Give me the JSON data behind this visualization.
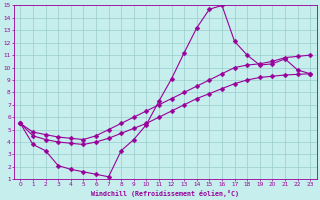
{
  "xlabel": "Windchill (Refroidissement éolien,°C)",
  "xlim": [
    -0.5,
    23.5
  ],
  "ylim": [
    1,
    15
  ],
  "xticks": [
    0,
    1,
    2,
    3,
    4,
    5,
    6,
    7,
    8,
    9,
    10,
    11,
    12,
    13,
    14,
    15,
    16,
    17,
    18,
    19,
    20,
    21,
    22,
    23
  ],
  "yticks": [
    1,
    2,
    3,
    4,
    5,
    6,
    7,
    8,
    9,
    10,
    11,
    12,
    13,
    14,
    15
  ],
  "bg_color": "#c5eeed",
  "line_color": "#990099",
  "grid_color": "#99cccc",
  "curve1_x": [
    0,
    1,
    2,
    3,
    4,
    5,
    6,
    7,
    8,
    9,
    10,
    11,
    12,
    13,
    14,
    15,
    16,
    17,
    18,
    19,
    20,
    21,
    22,
    23
  ],
  "curve1_y": [
    5.5,
    3.8,
    3.3,
    2.1,
    1.8,
    1.6,
    1.4,
    1.2,
    3.3,
    4.2,
    5.4,
    7.3,
    9.1,
    11.2,
    13.2,
    14.7,
    15.0,
    12.1,
    11.0,
    10.2,
    10.3,
    10.7,
    9.8,
    9.5
  ],
  "curve2_x": [
    0,
    1,
    2,
    3,
    4,
    5,
    6,
    7,
    8,
    9,
    10,
    11,
    12,
    13,
    14,
    15,
    16,
    17,
    18,
    19,
    20,
    21,
    22,
    23
  ],
  "curve2_y": [
    5.5,
    4.8,
    4.6,
    4.4,
    4.3,
    4.2,
    4.5,
    5.0,
    5.5,
    6.0,
    6.5,
    7.0,
    7.5,
    8.0,
    8.5,
    9.0,
    9.5,
    10.0,
    10.2,
    10.3,
    10.5,
    10.8,
    10.9,
    11.0
  ],
  "curve3_x": [
    0,
    1,
    2,
    3,
    4,
    5,
    6,
    7,
    8,
    9,
    10,
    11,
    12,
    13,
    14,
    15,
    16,
    17,
    18,
    19,
    20,
    21,
    22,
    23
  ],
  "curve3_y": [
    5.5,
    4.5,
    4.2,
    4.0,
    3.9,
    3.8,
    4.0,
    4.3,
    4.7,
    5.1,
    5.5,
    6.0,
    6.5,
    7.0,
    7.5,
    7.9,
    8.3,
    8.7,
    9.0,
    9.2,
    9.3,
    9.4,
    9.45,
    9.5
  ],
  "marker": "D",
  "markersize": 2.5,
  "linewidth": 0.8
}
